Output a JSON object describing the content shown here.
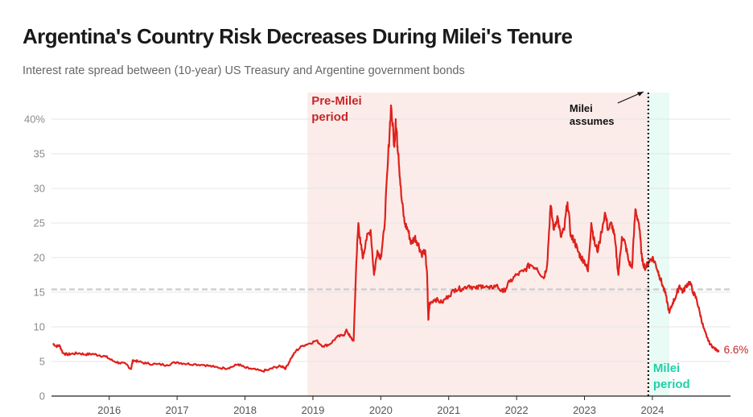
{
  "title": "Argentina's Country Risk Decreases During Milei's Tenure",
  "subtitle": "Interest rate spread between (10-year) US Treasury and Argentine government bonds",
  "chart_data": {
    "type": "line",
    "title": "Argentina's Country Risk Decreases During Milei's Tenure",
    "subtitle": "Interest rate spread between (10-year) US Treasury and Argentine government bonds",
    "xlabel": "",
    "ylabel": "",
    "xlim": [
      2015.15,
      2025.15
    ],
    "ylim": [
      0,
      40
    ],
    "y_ticks": [
      0,
      5,
      10,
      15,
      20,
      25,
      30,
      35,
      40
    ],
    "y_tick_labels": [
      "0",
      "5",
      "10",
      "15",
      "20",
      "25",
      "30",
      "35",
      "40%"
    ],
    "x_ticks": [
      2016,
      2017,
      2018,
      2019,
      2020,
      2021,
      2022,
      2023,
      2024
    ],
    "x_tick_labels": [
      "2016",
      "2017",
      "2018",
      "2019",
      "2020",
      "2021",
      "2022",
      "2023",
      "2024"
    ],
    "grid": true,
    "legend": "none",
    "reference_line_y": 15.4,
    "line_color": "#e0201c",
    "periods": [
      {
        "label": "Pre-Milei period",
        "start": 2018.92,
        "end": 2023.94,
        "color": "#fbece9"
      },
      {
        "label": "Milei period",
        "start": 2023.94,
        "end": 2024.25,
        "color": "#e8fbf4"
      }
    ],
    "annotations": [
      {
        "text": "Milei assumes",
        "x": 2023.94
      },
      {
        "text": "6.6%",
        "x": 2024.98,
        "y": 6.6
      }
    ],
    "series": [
      {
        "x": [
          2015.17,
          2015.22,
          2015.27,
          2015.32,
          2015.38,
          2015.45,
          2015.55,
          2015.65,
          2015.75,
          2015.85,
          2015.95,
          2016.05,
          2016.15,
          2016.25,
          2016.32,
          2016.35,
          2016.42,
          2016.55,
          2016.7,
          2016.85,
          2017.0,
          2017.1,
          2017.25,
          2017.4,
          2017.55,
          2017.7,
          2017.8,
          2017.9,
          2018.0,
          2018.1,
          2018.25,
          2018.35,
          2018.45,
          2018.55,
          2018.6,
          2018.68,
          2018.75,
          2018.85,
          2018.95,
          2019.05,
          2019.15,
          2019.25,
          2019.35,
          2019.45,
          2019.5,
          2019.55,
          2019.6,
          2019.64,
          2019.67,
          2019.7,
          2019.74,
          2019.78,
          2019.85,
          2019.9,
          2019.95,
          2020.0,
          2020.05,
          2020.1,
          2020.15,
          2020.2,
          2020.22,
          2020.24,
          2020.26,
          2020.3,
          2020.35,
          2020.4,
          2020.45,
          2020.5,
          2020.55,
          2020.6,
          2020.65,
          2020.68,
          2020.7,
          2020.72,
          2020.8,
          2020.9,
          2021.0,
          2021.1,
          2021.2,
          2021.3,
          2021.4,
          2021.5,
          2021.6,
          2021.7,
          2021.8,
          2021.9,
          2022.0,
          2022.1,
          2022.2,
          2022.3,
          2022.4,
          2022.45,
          2022.5,
          2022.55,
          2022.6,
          2022.65,
          2022.7,
          2022.75,
          2022.8,
          2022.85,
          2022.9,
          2022.95,
          2023.0,
          2023.05,
          2023.1,
          2023.15,
          2023.2,
          2023.3,
          2023.35,
          2023.4,
          2023.45,
          2023.5,
          2023.55,
          2023.6,
          2023.65,
          2023.7,
          2023.75,
          2023.8,
          2023.85,
          2023.9,
          2023.95,
          2024.0,
          2024.05,
          2024.1,
          2024.15,
          2024.2,
          2024.25,
          2024.3,
          2024.35,
          2024.4,
          2024.45,
          2024.5,
          2024.55,
          2024.6,
          2024.65,
          2024.7,
          2024.75,
          2024.8,
          2024.85,
          2024.9,
          2024.95,
          2024.98
        ],
        "y": [
          7.6,
          7.2,
          7.3,
          6.2,
          6.0,
          6.1,
          6.2,
          6.0,
          6.1,
          5.9,
          5.7,
          5.1,
          4.8,
          4.6,
          3.9,
          5.2,
          5.0,
          4.7,
          4.6,
          4.5,
          4.9,
          4.7,
          4.6,
          4.5,
          4.2,
          4.0,
          4.2,
          4.6,
          4.1,
          3.9,
          3.6,
          3.8,
          4.2,
          4.3,
          4.0,
          5.5,
          6.5,
          7.3,
          7.6,
          8.0,
          7.2,
          7.5,
          8.5,
          8.8,
          9.5,
          8.5,
          8.0,
          19.5,
          25.0,
          22.0,
          20.0,
          22.5,
          24.0,
          17.5,
          21.0,
          20.0,
          24.0,
          33.0,
          42.0,
          36.0,
          40.0,
          37.0,
          35.0,
          29.0,
          25.0,
          24.0,
          22.0,
          23.0,
          22.0,
          20.5,
          21.0,
          18.0,
          11.0,
          13.5,
          14.0,
          13.5,
          14.5,
          15.5,
          15.5,
          16.0,
          15.5,
          16.0,
          15.5,
          16.0,
          15.0,
          16.5,
          17.5,
          18.0,
          19.0,
          18.5,
          17.0,
          19.0,
          27.5,
          24.0,
          26.0,
          23.0,
          24.0,
          28.0,
          23.0,
          22.5,
          21.0,
          20.0,
          19.5,
          18.0,
          25.0,
          22.0,
          21.0,
          26.5,
          24.0,
          25.0,
          22.5,
          17.5,
          23.0,
          22.0,
          19.5,
          18.5,
          27.0,
          25.0,
          19.5,
          18.5,
          19.5,
          20.0,
          19.0,
          17.5,
          16.0,
          14.5,
          12.0,
          13.5,
          14.5,
          16.0,
          15.0,
          16.0,
          16.5,
          15.0,
          14.0,
          12.0,
          10.0,
          8.5,
          7.5,
          7.0,
          6.6,
          6.6
        ]
      }
    ]
  }
}
